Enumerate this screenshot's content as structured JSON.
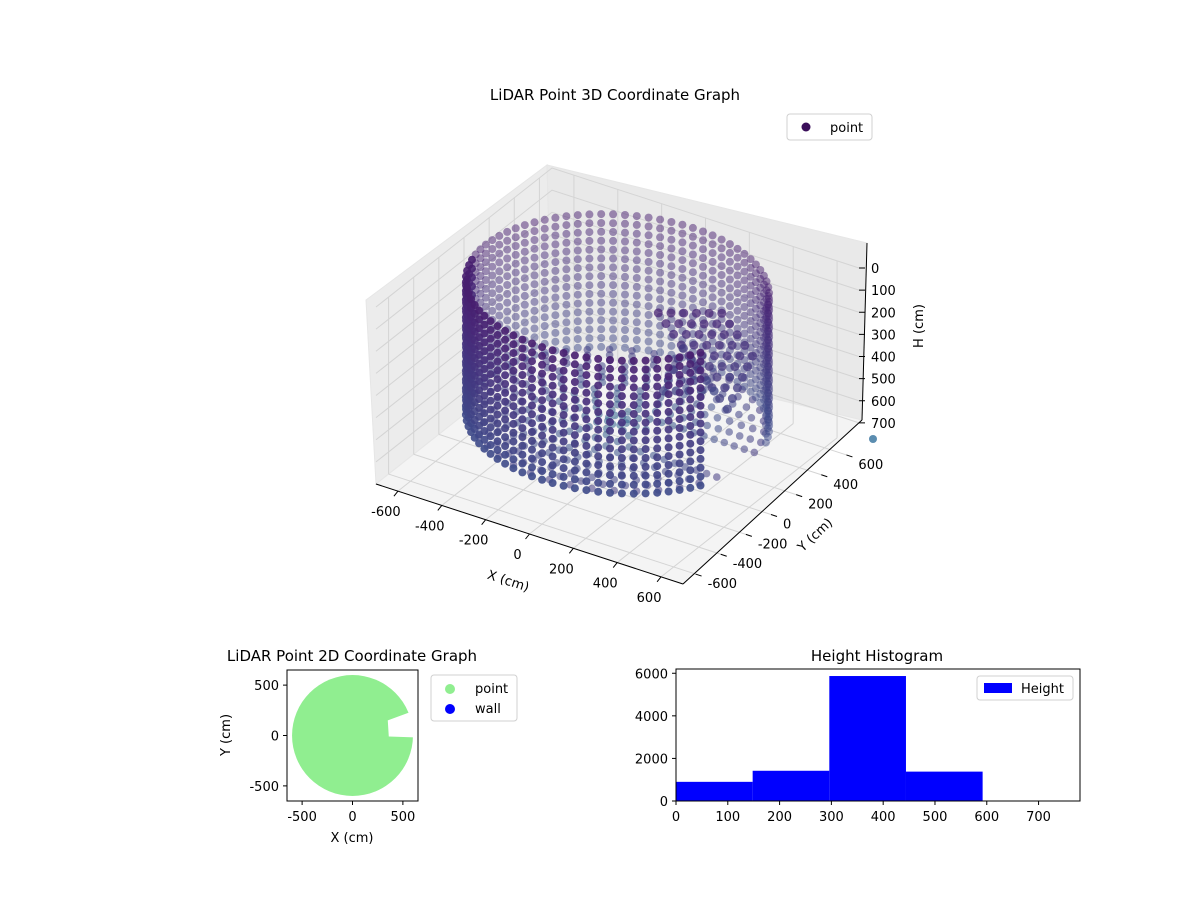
{
  "chart_data": [
    {
      "type": "scatter",
      "projection": "3d",
      "title": "LiDAR Point 3D Coordinate Graph",
      "xlabel": "X (cm)",
      "ylabel": "Y (cm)",
      "zlabel": "H (cm)",
      "xlim": [
        -700,
        700
      ],
      "ylim": [
        -700,
        700
      ],
      "zlim": [
        800,
        0
      ],
      "z_inverted": true,
      "x_ticks": [
        "-600",
        "-400",
        "-200",
        "0",
        "200",
        "400",
        "600"
      ],
      "y_ticks": [
        "-600",
        "-400",
        "-200",
        "0",
        "200",
        "400",
        "600"
      ],
      "z_ticks": [
        "0",
        "100",
        "200",
        "300",
        "400",
        "500",
        "600",
        "700"
      ],
      "legend": {
        "labels": [
          "point"
        ],
        "placement": "upper right"
      },
      "colormap": "viridis",
      "colors": {
        "point": "#3b0f5a",
        "wall": "#48186a",
        "floor": "#2d6d8e",
        "outlier": "#5b8db0"
      },
      "series": [
        {
          "name": "point",
          "description_values": {
            "wall_radius_cm": 600,
            "wall_height_range_cm": [
              0,
              600
            ],
            "floor_height_cm": 600,
            "outlier_point": {
              "x": 600,
              "y": 650,
              "h": 750
            }
          }
        }
      ],
      "grid": true
    },
    {
      "type": "scatter",
      "title": "LiDAR Point 2D Coordinate Graph",
      "xlabel": "X (cm)",
      "ylabel": "Y (cm)",
      "xlim": [
        -650,
        650
      ],
      "ylim": [
        -650,
        650
      ],
      "x_ticks": [
        "-500",
        "0",
        "500"
      ],
      "y_ticks": [
        "-500",
        "0",
        "500"
      ],
      "legend": {
        "labels": [
          "point",
          "wall"
        ],
        "placement": "outside right"
      },
      "series": [
        {
          "name": "point",
          "color": "#90ee90",
          "shape": "disk",
          "radius_cm": 600
        },
        {
          "name": "wall",
          "color": "#0000ff",
          "points": []
        }
      ]
    },
    {
      "type": "bar",
      "subtype": "histogram",
      "title": "Height Histogram",
      "xlim": [
        0,
        780
      ],
      "ylim": [
        0,
        6200
      ],
      "x_ticks": [
        "0",
        "100",
        "200",
        "300",
        "400",
        "500",
        "600",
        "700"
      ],
      "y_ticks": [
        "0",
        "2000",
        "4000",
        "6000"
      ],
      "legend": {
        "labels": [
          "Height"
        ],
        "placement": "upper right"
      },
      "color": "#0000ff",
      "bins": [
        {
          "x0": 0,
          "x1": 148,
          "count": 900
        },
        {
          "x0": 148,
          "x1": 296,
          "count": 1420
        },
        {
          "x0": 296,
          "x1": 444,
          "count": 5870
        },
        {
          "x0": 444,
          "x1": 592,
          "count": 1380
        }
      ]
    }
  ]
}
